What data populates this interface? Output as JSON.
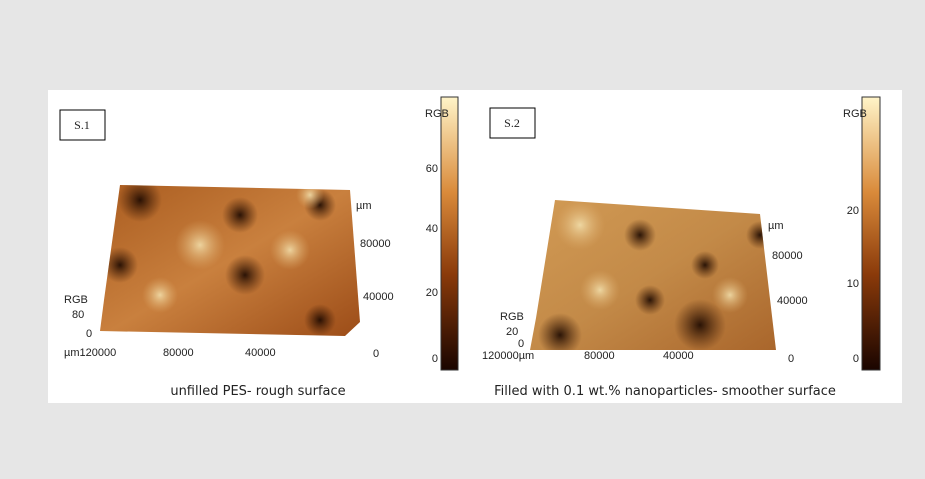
{
  "panels": [
    {
      "label": "S.1",
      "caption": "unfilled PES- rough surface",
      "colorbar": {
        "title": "RGB",
        "ticks": [
          60,
          40,
          20,
          0
        ]
      },
      "right_axis": {
        "unit": "µm",
        "ticks": [
          80000,
          40000,
          0
        ]
      },
      "left_axis": {
        "title": "RGB",
        "ticks": [
          80,
          0
        ]
      },
      "front_axis": {
        "ticks": [
          "µm120000",
          80000,
          40000
        ]
      }
    },
    {
      "label": "S.2",
      "caption": "Filled with 0.1 wt.% nanoparticles- smoother surface",
      "colorbar": {
        "title": "RGB",
        "ticks": [
          20,
          10,
          0
        ]
      },
      "right_axis": {
        "unit": "µm",
        "ticks": [
          80000,
          40000,
          0
        ]
      },
      "left_axis": {
        "title": "RGB",
        "ticks": [
          20,
          0
        ]
      },
      "front_axis": {
        "ticks": [
          "120000µm",
          80000,
          40000
        ]
      }
    }
  ]
}
